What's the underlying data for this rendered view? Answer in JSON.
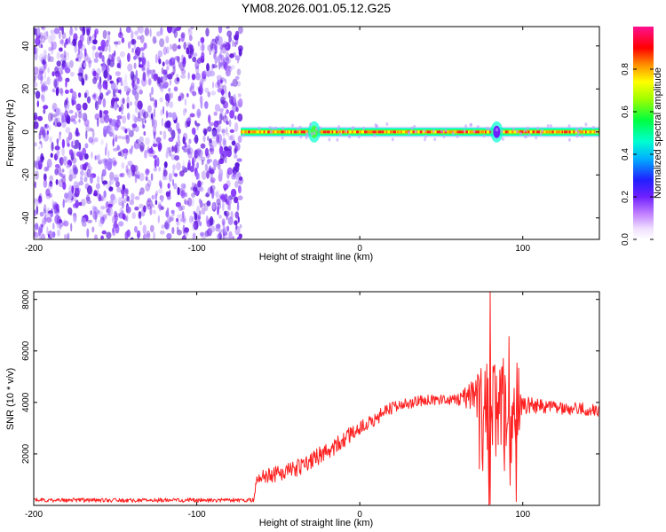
{
  "title": "YM08.2026.001.05.12.G25",
  "colors": {
    "snr_line": "#ff2020",
    "noise": "#7b2cf0",
    "frame": "#000000"
  },
  "chart_data": [
    {
      "type": "heatmap",
      "name": "spectrogram",
      "xlabel": "Height of straight line (km)",
      "ylabel": "Frequency (Hz)",
      "xlim": [
        -200,
        147
      ],
      "ylim": [
        -50,
        49
      ],
      "xticks": [
        -200,
        -100,
        0,
        100
      ],
      "xtick_labels": [
        "-200",
        "-100",
        "0",
        "100"
      ],
      "yticks": [
        -40,
        -20,
        0,
        20,
        40
      ],
      "ytick_labels": [
        "-40",
        "-20",
        "0",
        "20",
        "40"
      ],
      "noise_region_x": [
        -200,
        -73
      ],
      "signal_start_x": -73,
      "signal_frequency_hz": 0,
      "burst_x": [
        -28,
        84
      ],
      "colorbar": {
        "label": "Normalized spectral amplitude",
        "range": [
          0,
          1
        ],
        "ticks": [
          0.0,
          0.2,
          0.4,
          0.6,
          0.8
        ],
        "tick_labels": [
          "0.0",
          "0.2",
          "0.4",
          "0.6",
          "0.8"
        ]
      }
    },
    {
      "type": "line",
      "name": "snr",
      "xlabel": "Height of straight line (km)",
      "ylabel": "SNR (10 * v/v)",
      "xlim": [
        -200,
        147
      ],
      "ylim": [
        0,
        8300
      ],
      "xticks": [
        -200,
        -100,
        0,
        100
      ],
      "xtick_labels": [
        "-200",
        "-100",
        "0",
        "100"
      ],
      "yticks": [
        2000,
        4000,
        6000,
        8000
      ],
      "ytick_labels": [
        "2000",
        "4000",
        "6000",
        "8000"
      ],
      "series": [
        {
          "name": "SNR",
          "envelope_x": [
            -200,
            -65,
            -63,
            -40,
            -20,
            0,
            20,
            40,
            60,
            70,
            75,
            80,
            85,
            90,
            95,
            100,
            120,
            147
          ],
          "envelope_y": [
            200,
            200,
            1000,
            1400,
            2100,
            3000,
            3800,
            4100,
            4100,
            4200,
            4000,
            3600,
            3800,
            3500,
            3200,
            3900,
            3800,
            3700
          ],
          "noise_level": [
            80,
            80,
            300,
            350,
            350,
            300,
            250,
            200,
            200,
            700,
            1400,
            2400,
            2000,
            2300,
            1600,
            350,
            250,
            250
          ],
          "peak": {
            "x": 80,
            "y": 8300
          },
          "dips": [
            {
              "x": 80,
              "y": 50
            },
            {
              "x": 96,
              "y": 150
            }
          ]
        }
      ]
    }
  ]
}
